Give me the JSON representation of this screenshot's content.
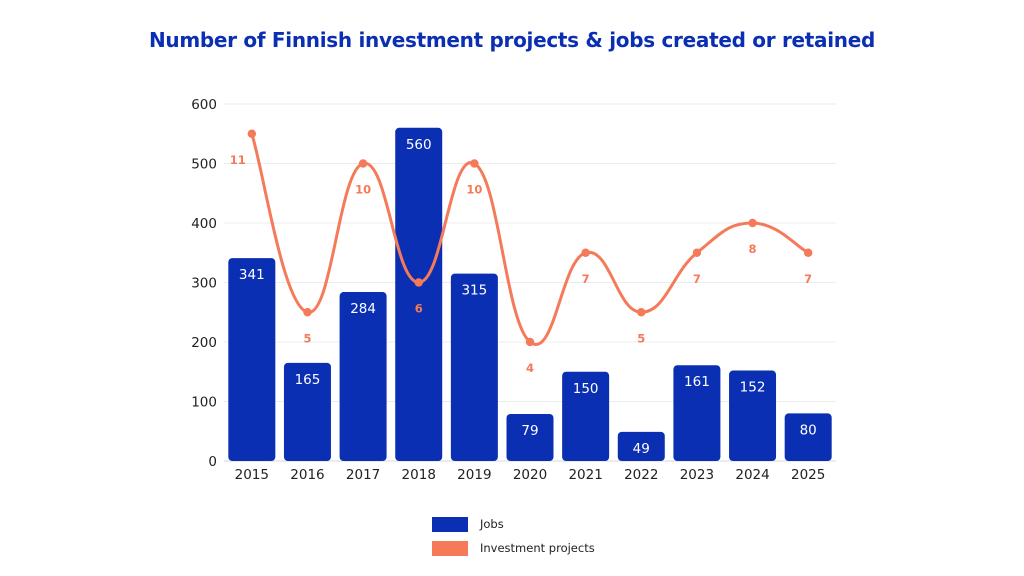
{
  "chart_data": {
    "type": "bar",
    "title": "Number of Finnish investment projects & jobs created or retained",
    "categories": [
      "2015",
      "2016",
      "2017",
      "2018",
      "2019",
      "2020",
      "2021",
      "2022",
      "2023",
      "2024",
      "2025"
    ],
    "series": [
      {
        "name": "Jobs",
        "type": "bar",
        "color": "#0b2fb3",
        "values": [
          341,
          165,
          284,
          560,
          315,
          79,
          150,
          49,
          161,
          152,
          80
        ]
      },
      {
        "name": "Investment projects",
        "type": "line",
        "color": "#f57a5a",
        "values": [
          11,
          5,
          10,
          6,
          10,
          4,
          7,
          5,
          7,
          8,
          7
        ]
      }
    ],
    "y_ticks": [
      "0",
      "100",
      "200",
      "300",
      "400",
      "500",
      "600"
    ],
    "ylim": [
      0,
      600
    ],
    "secondary_ylim": [
      0,
      12
    ],
    "grid": true,
    "legend_position": "bottom"
  }
}
